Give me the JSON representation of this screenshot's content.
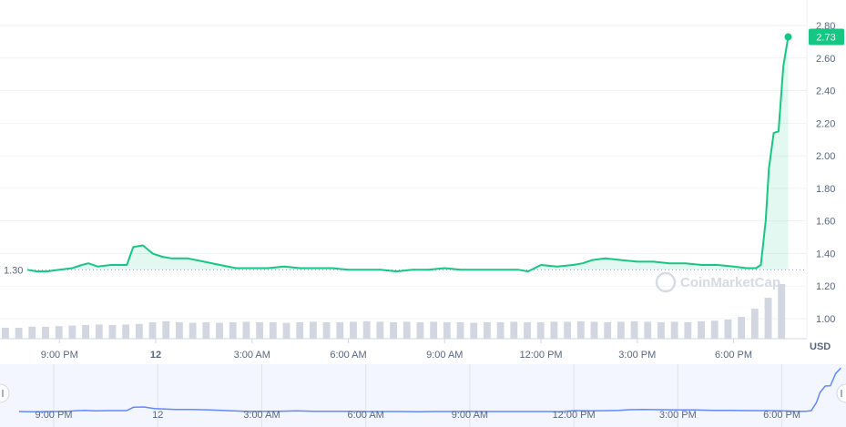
{
  "chart_data": {
    "type": "line",
    "ylabel": "USD",
    "ylim": [
      0.9,
      2.85
    ],
    "y_ticks": [
      "2.80",
      "2.60",
      "2.40",
      "2.20",
      "2.00",
      "1.80",
      "1.60",
      "1.40",
      "1.20",
      "1.00"
    ],
    "x_ticks": [
      "9:00 PM",
      "12",
      "3:00 AM",
      "6:00 AM",
      "9:00 AM",
      "12:00 PM",
      "3:00 PM",
      "6:00 PM"
    ],
    "x_start_hour": 20,
    "x_end_hour": 43.8,
    "open_price": 1.3,
    "open_price_label": "1.30",
    "current_price": 2.73,
    "current_price_label": "2.73",
    "watermark": "CoinMarketCap",
    "colors": {
      "line": "#16c784",
      "fill": "#16c784",
      "grid": "#eff2f5",
      "text": "#58667e",
      "nav_line": "#6188ff",
      "nav_bg": "#f3f6ff"
    },
    "series": [
      {
        "x": [
          20.0,
          20.3,
          20.6,
          21.0,
          21.4,
          21.7,
          21.9,
          22.2,
          22.6,
          22.9,
          23.1,
          23.3,
          23.6,
          23.9,
          24.2,
          24.5,
          25.0,
          25.5,
          26.0,
          26.5,
          27.0,
          27.5,
          28.0,
          28.5,
          29.0,
          29.5,
          30.0,
          30.5,
          31.0,
          31.5,
          32.0,
          32.5,
          33.0,
          33.5,
          34.0,
          34.5,
          35.0,
          35.3,
          35.6,
          36.0,
          36.5,
          37.0,
          37.3,
          37.6,
          38.0,
          38.5,
          39.0,
          39.5,
          40.0,
          40.5,
          41.0,
          41.5,
          42.0,
          42.4,
          42.7,
          42.85,
          43.0,
          43.1,
          43.25,
          43.4,
          43.55,
          43.7
        ],
        "y": [
          1.3,
          1.29,
          1.29,
          1.3,
          1.31,
          1.33,
          1.34,
          1.32,
          1.33,
          1.33,
          1.33,
          1.44,
          1.45,
          1.4,
          1.38,
          1.37,
          1.37,
          1.35,
          1.33,
          1.31,
          1.31,
          1.31,
          1.32,
          1.31,
          1.31,
          1.31,
          1.3,
          1.3,
          1.3,
          1.29,
          1.3,
          1.3,
          1.31,
          1.3,
          1.3,
          1.3,
          1.3,
          1.3,
          1.29,
          1.33,
          1.32,
          1.33,
          1.34,
          1.36,
          1.37,
          1.36,
          1.35,
          1.35,
          1.34,
          1.34,
          1.33,
          1.33,
          1.32,
          1.31,
          1.31,
          1.33,
          1.6,
          1.92,
          2.14,
          2.15,
          2.55,
          2.73
        ]
      }
    ],
    "volume_relative": [
      0.2,
      0.2,
      0.22,
      0.22,
      0.23,
      0.24,
      0.25,
      0.26,
      0.25,
      0.26,
      0.27,
      0.3,
      0.32,
      0.3,
      0.29,
      0.3,
      0.29,
      0.3,
      0.31,
      0.3,
      0.3,
      0.29,
      0.3,
      0.31,
      0.3,
      0.3,
      0.31,
      0.32,
      0.31,
      0.3,
      0.31,
      0.3,
      0.31,
      0.3,
      0.3,
      0.29,
      0.3,
      0.3,
      0.31,
      0.3,
      0.3,
      0.31,
      0.31,
      0.32,
      0.31,
      0.3,
      0.31,
      0.32,
      0.31,
      0.3,
      0.31,
      0.3,
      0.32,
      0.33,
      0.35,
      0.4,
      0.55,
      0.75,
      1.0
    ]
  }
}
